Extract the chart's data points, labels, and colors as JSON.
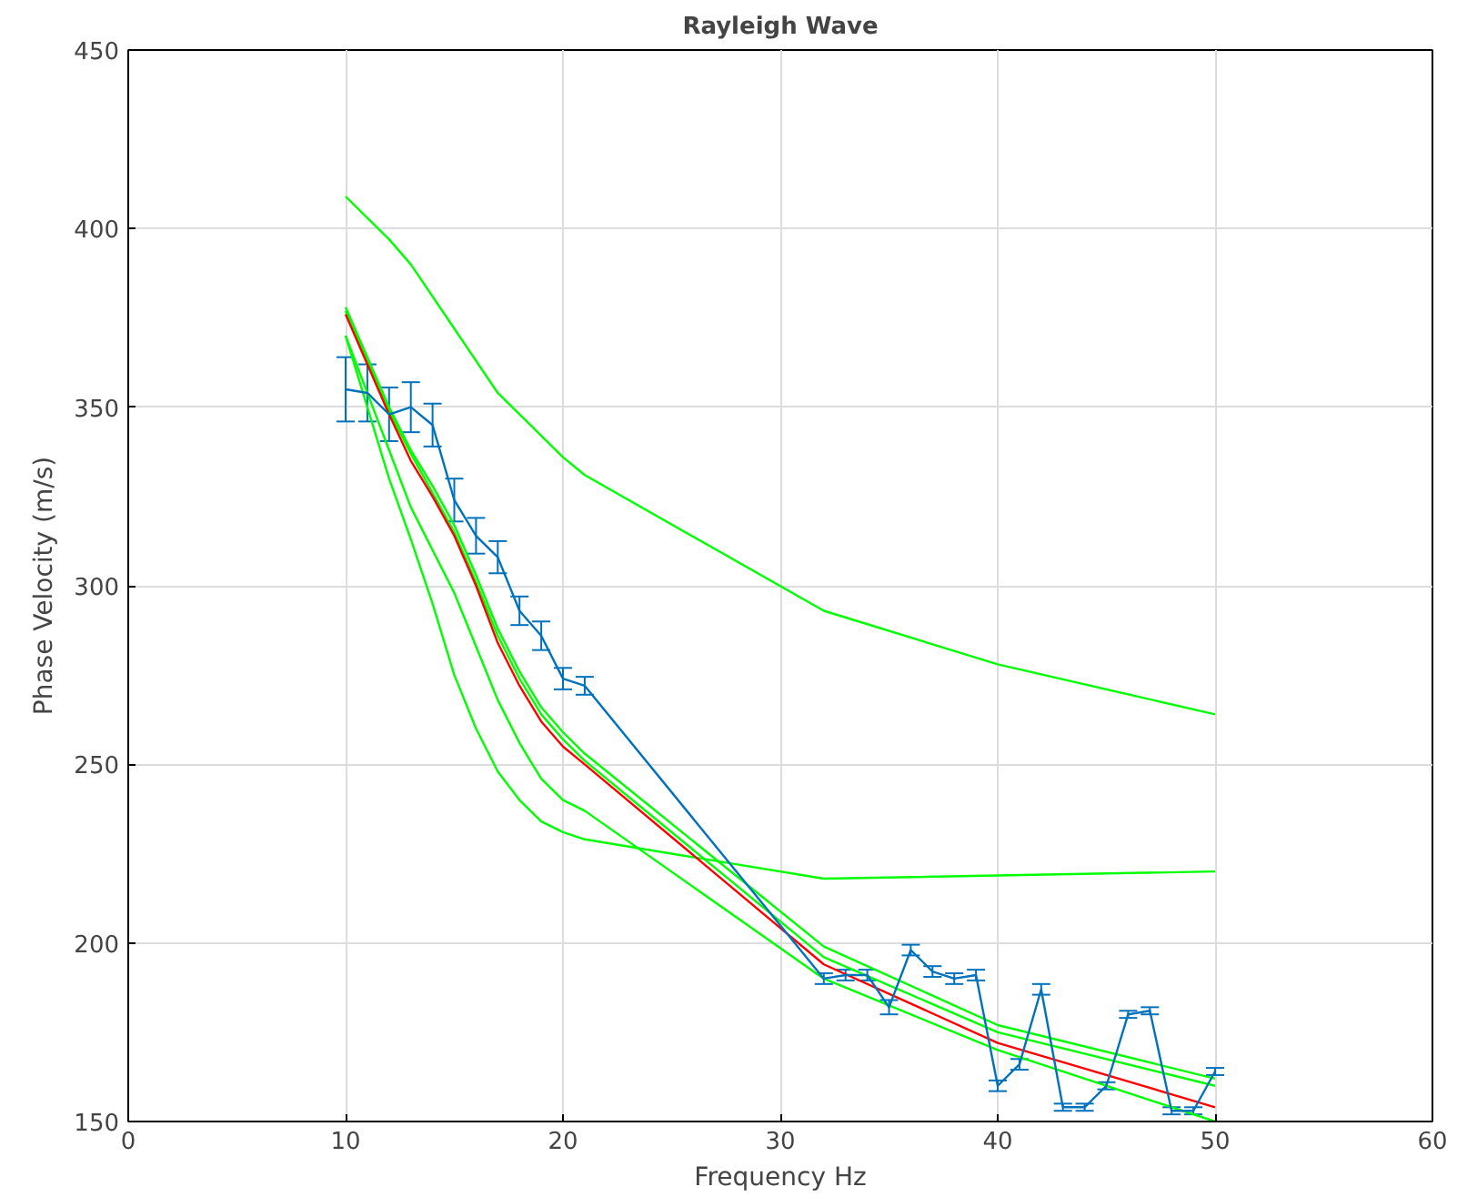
{
  "chart_data": {
    "type": "line",
    "title": "Rayleigh Wave",
    "xlabel": "Frequency Hz",
    "ylabel": "Phase Velocity (m/s)",
    "xlim": [
      0,
      60
    ],
    "xticks": [
      0,
      10,
      20,
      30,
      40,
      50,
      60
    ],
    "ylim": [
      150,
      450
    ],
    "yticks": [
      150,
      200,
      250,
      300,
      350,
      400,
      450
    ],
    "grid": true,
    "marker": "none",
    "line_style": "solid",
    "series": [
      {
        "color": "#00ff00",
        "x": [
          10,
          12,
          13,
          15,
          17,
          20,
          21,
          32,
          40,
          50
        ],
        "values": [
          409,
          397,
          390,
          372,
          354,
          336,
          331,
          293,
          278,
          264
        ]
      },
      {
        "color": "#00ff00",
        "x": [
          10,
          11,
          12,
          13,
          14,
          15,
          16,
          17,
          18,
          19,
          20,
          21,
          32,
          50
        ],
        "values": [
          370,
          350,
          330,
          313,
          295,
          275,
          260,
          248,
          240,
          234,
          231,
          229,
          218,
          220
        ]
      },
      {
        "color": "#00ff00",
        "x": [
          10,
          12,
          13,
          14,
          15,
          16,
          17,
          18,
          19,
          20,
          21,
          32,
          40,
          50
        ],
        "values": [
          370,
          338,
          322,
          310,
          298,
          283,
          268,
          256,
          246,
          240,
          237,
          190,
          170,
          150
        ]
      },
      {
        "color": "#00ff00",
        "x": [
          10,
          12,
          13,
          14,
          15,
          16,
          17,
          18,
          19,
          20,
          21,
          32,
          40,
          50
        ],
        "values": [
          378,
          350,
          338,
          328,
          317,
          303,
          288,
          276,
          266,
          259,
          253,
          199,
          177,
          162
        ]
      },
      {
        "color": "#00ff00",
        "x": [
          10,
          12,
          13,
          14,
          15,
          16,
          17,
          18,
          19,
          20,
          21,
          32,
          40,
          50
        ],
        "values": [
          377,
          349,
          337,
          326,
          315,
          301,
          286,
          274,
          264,
          257,
          251,
          196,
          175,
          160
        ]
      },
      {
        "color": "#ff0000",
        "x": [
          10,
          12,
          13,
          14,
          15,
          16,
          17,
          18,
          19,
          20,
          21,
          32,
          40,
          50
        ],
        "values": [
          376,
          348,
          335,
          325,
          314,
          300,
          284,
          272,
          262,
          255,
          250,
          194,
          172,
          154
        ]
      },
      {
        "color": "#0072bd",
        "x": [
          10,
          11,
          12,
          13,
          14,
          15,
          16,
          17,
          18,
          19,
          20,
          21,
          32,
          33,
          34,
          35,
          36,
          37,
          38,
          39,
          40,
          41,
          42,
          43,
          44,
          45,
          46,
          47,
          48,
          49,
          50
        ],
        "values": [
          355,
          354,
          348,
          350,
          345,
          324,
          314,
          308,
          293,
          286,
          274,
          272,
          190,
          191,
          191,
          182,
          198,
          192,
          190,
          191,
          160,
          166,
          187,
          154,
          154,
          160,
          180,
          181,
          153,
          153,
          164
        ],
        "errors": [
          9,
          8,
          7.5,
          7,
          6,
          6,
          5,
          4.5,
          4,
          4,
          3,
          2.5,
          1.5,
          1.5,
          1.5,
          2,
          1.5,
          1.5,
          1.5,
          1.5,
          1.5,
          1.5,
          1.5,
          1,
          1,
          1,
          1,
          1,
          1,
          1,
          1
        ]
      }
    ]
  }
}
